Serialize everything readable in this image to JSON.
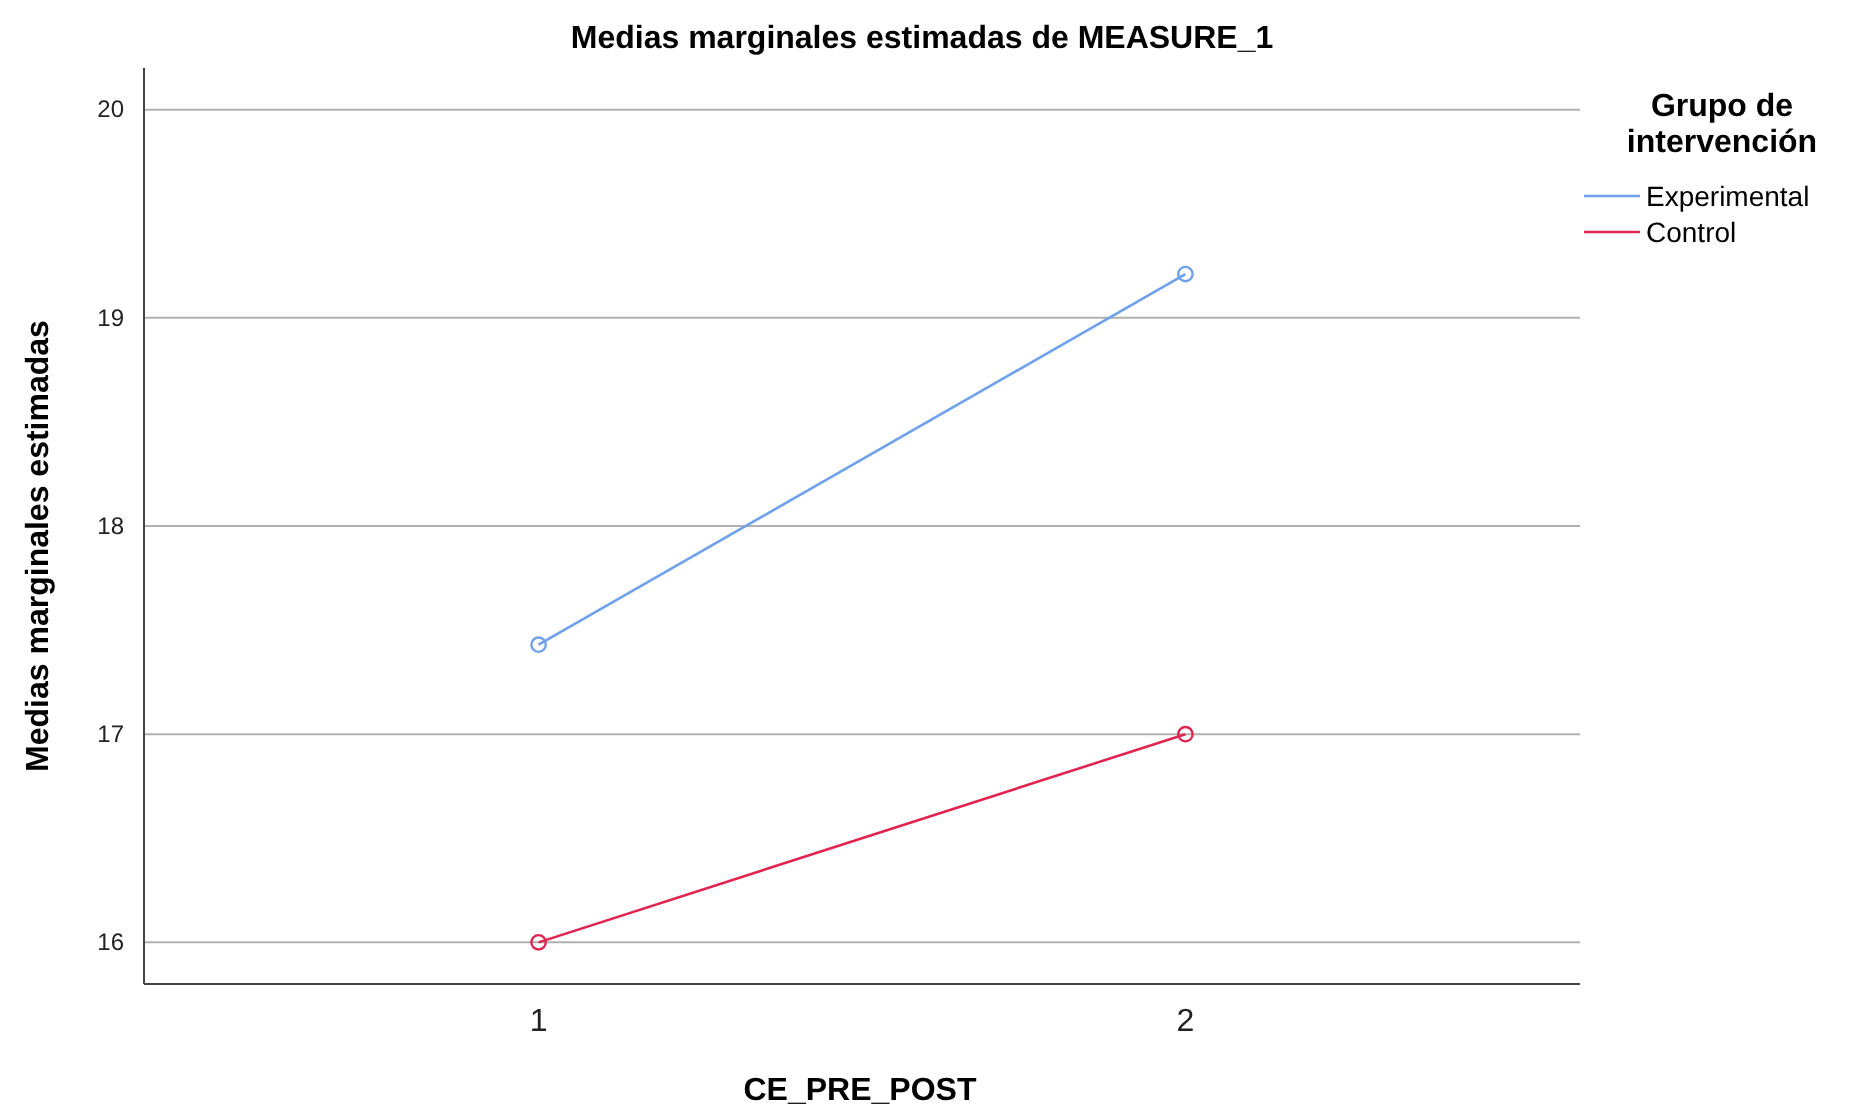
{
  "chart_data": {
    "type": "line",
    "title": "Medias marginales estimadas de MEASURE_1",
    "xlabel": "CE_PRE_POST",
    "ylabel": "Medias marginales estimadas",
    "legend_title": "Grupo de intervención",
    "x": [
      1,
      2
    ],
    "xlim": [
      0.39,
      2.61
    ],
    "xticks": [
      1,
      2
    ],
    "series": [
      {
        "name": "Experimental",
        "color": "#6fa1ea",
        "values": [
          17.43,
          19.21
        ]
      },
      {
        "name": "Control",
        "color": "#e0244f",
        "values": [
          16,
          17
        ]
      }
    ],
    "ylim": [
      15.8,
      20.2
    ],
    "yticks": [
      16,
      17,
      18,
      19,
      20
    ],
    "grid": "y",
    "legend": "top right",
    "marker": "circle",
    "line_style": "solid"
  }
}
